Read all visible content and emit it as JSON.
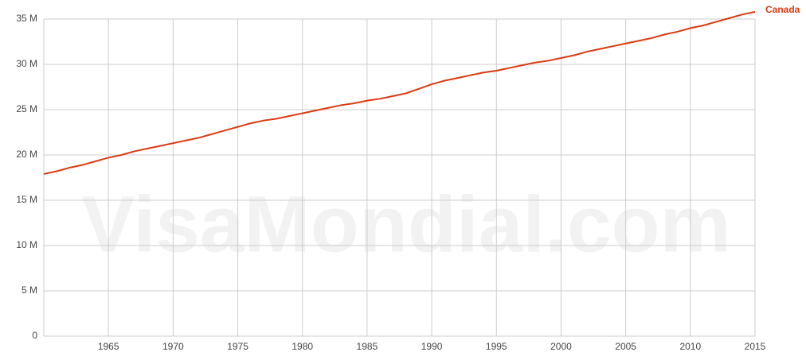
{
  "chart_data": {
    "type": "line",
    "watermark": "VisaMondial.com",
    "x": [
      1960,
      1961,
      1962,
      1963,
      1964,
      1965,
      1966,
      1967,
      1968,
      1969,
      1970,
      1971,
      1972,
      1973,
      1974,
      1975,
      1976,
      1977,
      1978,
      1979,
      1980,
      1981,
      1982,
      1983,
      1984,
      1985,
      1986,
      1987,
      1988,
      1989,
      1990,
      1991,
      1992,
      1993,
      1994,
      1995,
      1996,
      1997,
      1998,
      1999,
      2000,
      2001,
      2002,
      2003,
      2004,
      2005,
      2006,
      2007,
      2008,
      2009,
      2010,
      2011,
      2012,
      2013,
      2014,
      2015
    ],
    "series": [
      {
        "name": "Canada",
        "color": "#dc3912",
        "values": [
          17.9,
          18.2,
          18.6,
          18.9,
          19.3,
          19.7,
          20.0,
          20.4,
          20.7,
          21.0,
          21.3,
          21.6,
          21.9,
          22.3,
          22.7,
          23.1,
          23.5,
          23.8,
          24.0,
          24.3,
          24.6,
          24.9,
          25.2,
          25.5,
          25.7,
          26.0,
          26.2,
          26.5,
          26.8,
          27.3,
          27.8,
          28.2,
          28.5,
          28.8,
          29.1,
          29.3,
          29.6,
          29.9,
          30.2,
          30.4,
          30.7,
          31.0,
          31.4,
          31.7,
          32.0,
          32.3,
          32.6,
          32.9,
          33.3,
          33.6,
          34.0,
          34.3,
          34.7,
          35.1,
          35.5,
          35.8
        ]
      }
    ],
    "xlim": [
      1960,
      2015
    ],
    "xticks": [
      1965,
      1970,
      1975,
      1980,
      1985,
      1990,
      1995,
      2000,
      2005,
      2010,
      2015
    ],
    "ylim": [
      0,
      35
    ],
    "yticks": [
      {
        "value": 0,
        "label": "0"
      },
      {
        "value": 5,
        "label": "5 M"
      },
      {
        "value": 10,
        "label": "10 M"
      },
      {
        "value": 15,
        "label": "15 M"
      },
      {
        "value": 20,
        "label": "20 M"
      },
      {
        "value": 25,
        "label": "25 M"
      },
      {
        "value": 30,
        "label": "30 M"
      },
      {
        "value": 35,
        "label": "35 M"
      }
    ],
    "grid": true
  }
}
